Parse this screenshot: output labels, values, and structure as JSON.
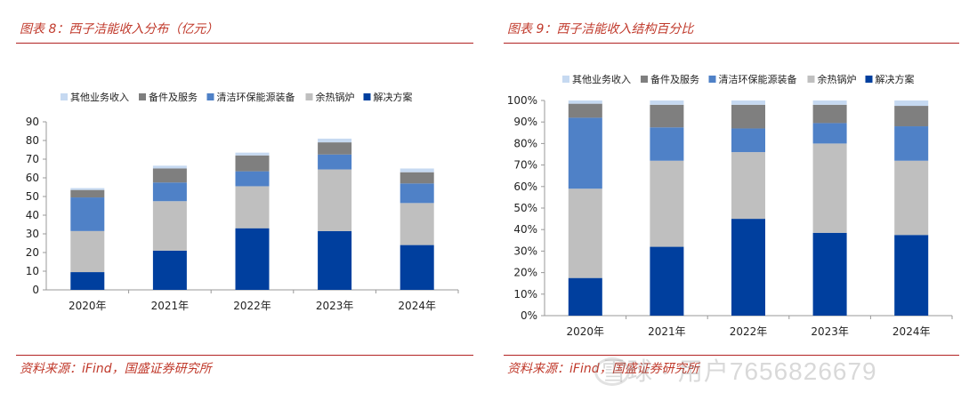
{
  "left": {
    "title": "图表 8：西子洁能收入分布（亿元）",
    "source": "资料来源：iFind，国盛证券研究所"
  },
  "right": {
    "title": "图表 9：西子洁能收入结构百分比",
    "source": "资料来源：iFind，国盛证券研究所"
  },
  "watermark": "雪球 · 用户7656826679",
  "colors": {
    "其他业务收入": "#c6d9f1",
    "备件及服务": "#7f7f7f",
    "清洁环保能源装备": "#4f81c7",
    "余热锅炉": "#bfbfbf",
    "解决方案": "#003f9e"
  },
  "chart_data": [
    {
      "type": "bar",
      "stacked": true,
      "title": "图表 8：西子洁能收入分布（亿元）",
      "categories": [
        "2020年",
        "2021年",
        "2022年",
        "2023年",
        "2024年"
      ],
      "series": [
        {
          "name": "解决方案",
          "values": [
            9.5,
            21,
            33,
            31.5,
            24
          ]
        },
        {
          "name": "余热锅炉",
          "values": [
            22,
            26.5,
            22.5,
            33,
            22.5
          ]
        },
        {
          "name": "清洁环保能源装备",
          "values": [
            18,
            10,
            8,
            8,
            10.5
          ]
        },
        {
          "name": "备件及服务",
          "values": [
            4,
            7.5,
            8.5,
            6.5,
            6
          ]
        },
        {
          "name": "其他业务收入",
          "values": [
            1,
            1.5,
            1.5,
            2,
            2
          ]
        }
      ],
      "legend_order": [
        "其他业务收入",
        "备件及服务",
        "清洁环保能源装备",
        "余热锅炉",
        "解决方案"
      ],
      "legend_position": "top",
      "ylim": [
        0,
        90
      ],
      "yticks": [
        "0",
        "10",
        "20",
        "30",
        "40",
        "50",
        "60",
        "70",
        "80",
        "90"
      ],
      "grid": false
    },
    {
      "type": "bar",
      "stacked": true,
      "title": "图表 9：西子洁能收入结构百分比",
      "categories": [
        "2020年",
        "2021年",
        "2022年",
        "2023年",
        "2024年"
      ],
      "series": [
        {
          "name": "解决方案",
          "values": [
            17.5,
            32,
            45,
            38.5,
            37.5
          ]
        },
        {
          "name": "余热锅炉",
          "values": [
            41.5,
            40,
            31,
            41.5,
            34.5
          ]
        },
        {
          "name": "清洁环保能源装备",
          "values": [
            33,
            15.5,
            11,
            9.5,
            16
          ]
        },
        {
          "name": "备件及服务",
          "values": [
            6.5,
            10.5,
            11,
            8.5,
            9.5
          ]
        },
        {
          "name": "其他业务收入",
          "values": [
            1.5,
            2,
            2,
            2,
            2.5
          ]
        }
      ],
      "legend_order": [
        "其他业务收入",
        "备件及服务",
        "清洁环保能源装备",
        "余热锅炉",
        "解决方案"
      ],
      "legend_position": "top",
      "ylim": [
        0,
        100
      ],
      "yticks": [
        "0%",
        "10%",
        "20%",
        "30%",
        "40%",
        "50%",
        "60%",
        "70%",
        "80%",
        "90%",
        "100%"
      ],
      "grid": false
    }
  ]
}
